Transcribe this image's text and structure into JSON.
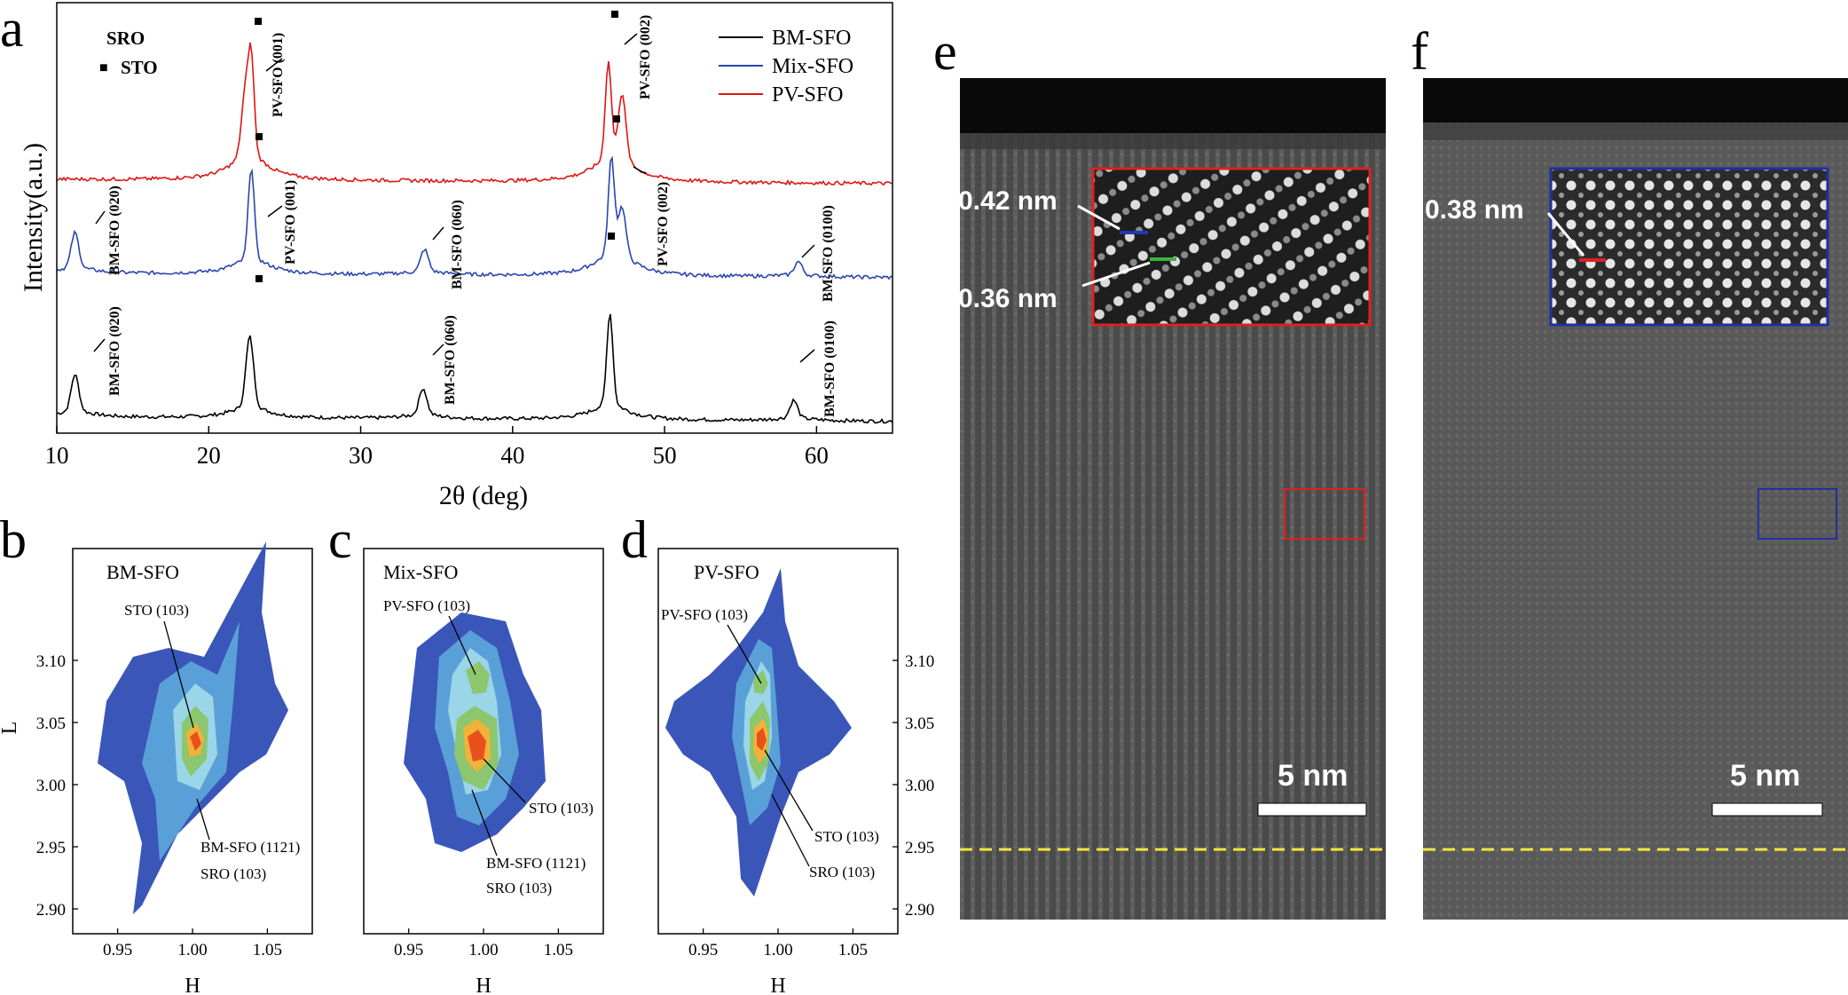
{
  "panel_labels": {
    "a": "a",
    "b": "b",
    "c": "c",
    "d": "d",
    "e": "e",
    "f": "f"
  },
  "chart_data": [
    {
      "panel": "a",
      "type": "line",
      "xlabel": "2θ (deg)",
      "ylabel": "Intensity(a.u.)",
      "xlim": [
        10,
        65
      ],
      "xticks": [
        10,
        20,
        30,
        40,
        50,
        60
      ],
      "legend_position": "top-right",
      "marker_legend": [
        {
          "symbol": "",
          "label": "SRO"
        },
        {
          "symbol": "■",
          "label": "STO"
        }
      ],
      "colors": {
        "BM-SFO": "#000000",
        "Mix-SFO": "#2a45b0",
        "PV-SFO": "#e01515"
      },
      "series": [
        {
          "name": "BM-SFO",
          "color": "#000000",
          "peaks": [
            {
              "x": 11.2,
              "h": 0.42
            },
            {
              "x": 22.7,
              "h": 0.8
            },
            {
              "x": 34.1,
              "h": 0.3
            },
            {
              "x": 46.4,
              "h": 1.05
            },
            {
              "x": 58.5,
              "h": 0.2
            }
          ]
        },
        {
          "name": "Mix-SFO",
          "color": "#2a45b0",
          "peaks": [
            {
              "x": 11.2,
              "h": 0.4
            },
            {
              "x": 22.8,
              "h": 1.05
            },
            {
              "x": 34.2,
              "h": 0.25
            },
            {
              "x": 46.5,
              "h": 1.1
            },
            {
              "x": 47.2,
              "h": 0.55
            },
            {
              "x": 58.8,
              "h": 0.15
            }
          ]
        },
        {
          "name": "PV-SFO",
          "color": "#e01515",
          "peaks": [
            {
              "x": 22.4,
              "h": 0.7
            },
            {
              "x": 22.8,
              "h": 1.05
            },
            {
              "x": 46.3,
              "h": 1.1
            },
            {
              "x": 47.2,
              "h": 0.75
            }
          ]
        }
      ],
      "annotations": [
        {
          "text": "PV-SFO (001)",
          "series": "PV-SFO"
        },
        {
          "text": "PV-SFO (002)",
          "series": "PV-SFO"
        },
        {
          "text": "BM-SFO (020)",
          "series": "Mix-SFO"
        },
        {
          "text": "PV-SFO (001)",
          "series": "Mix-SFO"
        },
        {
          "text": "BM-SFO (060)",
          "series": "Mix-SFO"
        },
        {
          "text": "PV-SFO (002)",
          "series": "Mix-SFO"
        },
        {
          "text": "BM-SFO (0100)",
          "series": "Mix-SFO"
        },
        {
          "text": "BM-SFO (020)",
          "series": "BM-SFO"
        },
        {
          "text": "BM-SFO (060)",
          "series": "BM-SFO"
        },
        {
          "text": "BM-SFO (0100)",
          "series": "BM-SFO"
        }
      ]
    },
    {
      "panel": "b",
      "type": "heatmap",
      "title": "BM-SFO",
      "xlabel": "H",
      "ylabel": "L",
      "xlim": [
        0.92,
        1.08
      ],
      "ylim": [
        2.88,
        3.19
      ],
      "xticks": [
        "0.95",
        "1.00",
        "1.05"
      ],
      "yticks": [
        "2.90",
        "2.95",
        "3.00",
        "3.05",
        "3.10"
      ],
      "peaks": [
        {
          "H": 1.0,
          "L": 3.005
        }
      ],
      "annotations": [
        "STO (103)",
        "BM-SFO (1121)",
        "SRO (103)"
      ]
    },
    {
      "panel": "c",
      "type": "heatmap",
      "title": "Mix-SFO",
      "xlabel": "H",
      "xlim": [
        0.92,
        1.08
      ],
      "ylim": [
        2.88,
        3.19
      ],
      "xticks": [
        "0.95",
        "1.00",
        "1.05"
      ],
      "peaks": [
        {
          "H": 1.0,
          "L": 3.0
        },
        {
          "H": 1.005,
          "L": 3.048
        }
      ],
      "annotations": [
        "PV-SFO (103)",
        "STO (103)",
        "BM-SFO (1121)",
        "SRO (103)"
      ]
    },
    {
      "panel": "d",
      "type": "heatmap",
      "title": "PV-SFO",
      "xlabel": "H",
      "xlim": [
        0.92,
        1.08
      ],
      "ylim": [
        2.88,
        3.19
      ],
      "xticks": [
        "0.95",
        "1.00",
        "1.05"
      ],
      "yticks": [
        "2.90",
        "2.95",
        "3.00",
        "3.05",
        "3.10"
      ],
      "peaks": [
        {
          "H": 1.0,
          "L": 3.0
        },
        {
          "H": 1.003,
          "L": 3.04
        }
      ],
      "annotations": [
        "PV-SFO (103)",
        "STO (103)",
        "SRO (103)"
      ]
    }
  ],
  "heatmap_colors": [
    "#ffffff",
    "#3a56b8",
    "#5aa0d8",
    "#9ad6e8",
    "#8cc66e",
    "#f2b23a",
    "#e8501e"
  ],
  "images": {
    "e": {
      "d1": "0.42 nm",
      "d2": "0.36 nm",
      "scale": "5 nm",
      "inset_color": "#e02020",
      "d1_color": "#2038b0",
      "d2_color": "#40b040"
    },
    "f": {
      "d1": "0.38 nm",
      "scale": "5 nm",
      "inset_color": "#2030a0",
      "d1_color": "#e02020"
    },
    "interface_line_color": "#f5e63a"
  }
}
